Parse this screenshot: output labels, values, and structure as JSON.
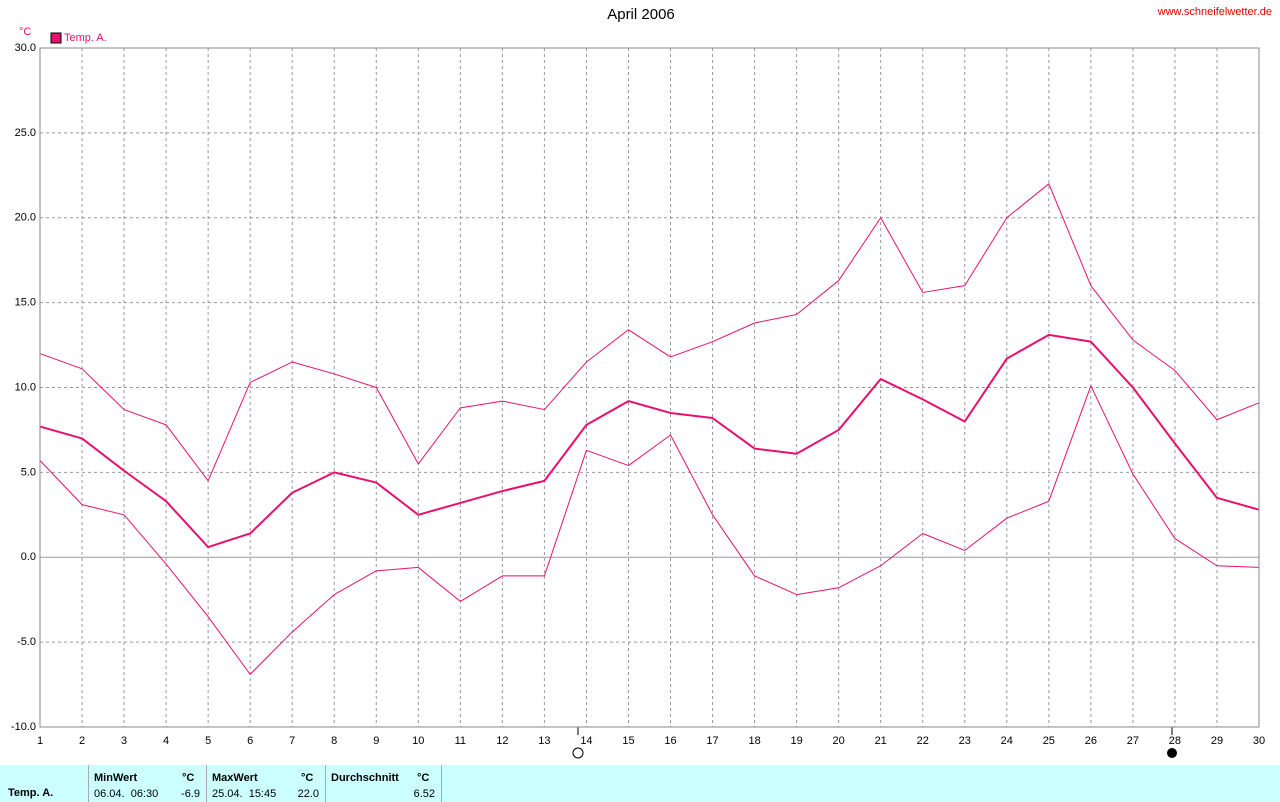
{
  "chart_data": {
    "type": "line",
    "title": "April 2006",
    "source": "www.schneifelwetter.de",
    "y_unit": "°C",
    "x": [
      1,
      2,
      3,
      4,
      5,
      6,
      7,
      8,
      9,
      10,
      11,
      12,
      13,
      14,
      15,
      16,
      17,
      18,
      19,
      20,
      21,
      22,
      23,
      24,
      25,
      26,
      27,
      28,
      29,
      30
    ],
    "xlim": [
      1,
      30
    ],
    "xticks": [
      1,
      2,
      3,
      4,
      5,
      6,
      7,
      8,
      9,
      10,
      11,
      12,
      13,
      14,
      15,
      16,
      17,
      18,
      19,
      20,
      21,
      22,
      23,
      24,
      25,
      26,
      27,
      28,
      29,
      30
    ],
    "ylim": [
      -10,
      30
    ],
    "yticks": [
      {
        "value": -10,
        "label": "-10.0"
      },
      {
        "value": -5,
        "label": "-5.0"
      },
      {
        "value": 0,
        "label": "0.0"
      },
      {
        "value": 5,
        "label": "5.0"
      },
      {
        "value": 10,
        "label": "10.0"
      },
      {
        "value": 15,
        "label": "15.0"
      },
      {
        "value": 20,
        "label": "20.0"
      },
      {
        "value": 25,
        "label": "25.0"
      },
      {
        "value": 30,
        "label": "30.0"
      }
    ],
    "grid": true,
    "legend": "top-left",
    "series": [
      {
        "name": "Temp. A.",
        "color": "#e8106e",
        "values": [
          7.7,
          7.0,
          5.1,
          3.3,
          0.6,
          1.4,
          3.8,
          5.0,
          4.4,
          2.5,
          3.2,
          3.9,
          4.5,
          7.8,
          9.2,
          8.5,
          8.2,
          6.4,
          6.1,
          7.5,
          10.5,
          9.3,
          8.0,
          11.7,
          13.1,
          12.7,
          10.0,
          6.7,
          3.5,
          2.8
        ]
      },
      {
        "color": "#e8106e",
        "values": [
          12.0,
          11.1,
          8.7,
          7.8,
          4.5,
          10.3,
          11.5,
          10.8,
          10.0,
          5.5,
          8.8,
          9.2,
          8.7,
          11.5,
          13.4,
          11.8,
          12.7,
          13.8,
          14.3,
          16.3,
          20.0,
          15.6,
          16.0,
          20.0,
          22.0,
          16.0,
          12.8,
          11.0,
          8.1,
          9.1
        ]
      },
      {
        "color": "#e8106e",
        "values": [
          5.7,
          3.1,
          2.5,
          -0.4,
          -3.5,
          -6.9,
          -4.4,
          -2.2,
          -0.8,
          -0.6,
          -2.6,
          -1.1,
          -1.1,
          6.3,
          5.4,
          7.2,
          2.5,
          -1.1,
          -2.2,
          -1.8,
          -0.5,
          1.4,
          0.4,
          2.3,
          3.3,
          10.1,
          4.9,
          1.1,
          -0.5,
          -0.6
        ]
      }
    ]
  },
  "summary": {
    "label": "Temp. A.",
    "columns": [
      {
        "header": "MinWert",
        "unit": "°C",
        "time": "06.04.  06:30",
        "value": "-6.9"
      },
      {
        "header": "MaxWert",
        "unit": "°C",
        "time": "25.04.  15:45",
        "value": "22.0"
      },
      {
        "header": "Durchschnitt",
        "unit": "°C",
        "value": "6.52"
      }
    ]
  }
}
